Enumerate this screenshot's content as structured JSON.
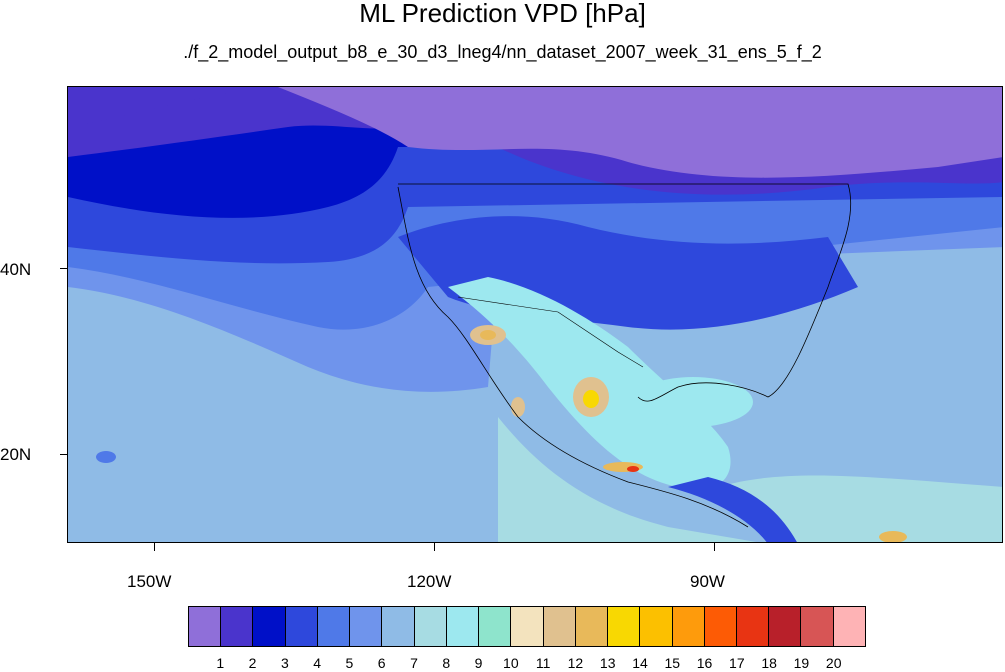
{
  "title": "ML Prediction VPD [hPa]",
  "subtitle": "./f_2_model_output_b8_e_30_d3_lneg4/nn_dataset_2007_week_31_ens_5_f_2",
  "lat_labels": [
    "40N",
    "20N"
  ],
  "lon_labels": [
    "150W",
    "120W",
    "90W"
  ],
  "colorbar": {
    "colors": [
      "#8f6fd9",
      "#4a34cc",
      "#0010c8",
      "#2e48dc",
      "#4f79e8",
      "#6f94ec",
      "#8fbbe6",
      "#a7dce3",
      "#9de8ef",
      "#8ee4cc",
      "#f3e3be",
      "#e0c18f",
      "#e8b95a",
      "#f8d802",
      "#fcc000",
      "#fe9b0c",
      "#fd5b05",
      "#e83413",
      "#b8202a",
      "#d75555",
      "#feb3b5"
    ],
    "labels": [
      "1",
      "2",
      "3",
      "4",
      "5",
      "6",
      "7",
      "8",
      "9",
      "10",
      "11",
      "12",
      "13",
      "14",
      "15",
      "16",
      "17",
      "18",
      "19",
      "20"
    ]
  }
}
